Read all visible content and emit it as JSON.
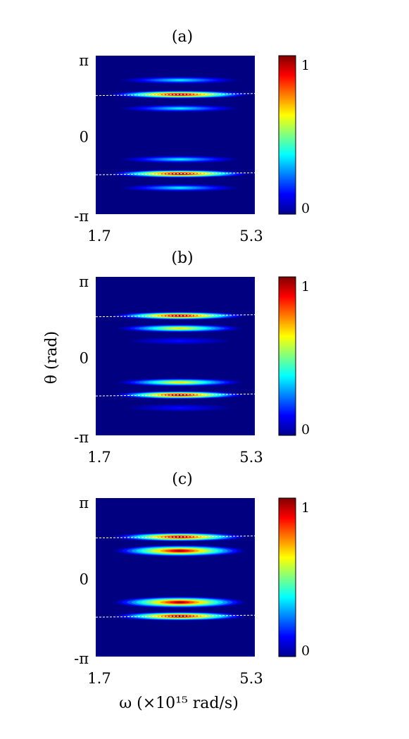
{
  "chart_data": [
    {
      "type": "heatmap",
      "title": "(a)",
      "xlabel": "",
      "ylabel": "",
      "x_tick_labels": [
        "1.7",
        "5.3"
      ],
      "y_tick_labels": [
        "π",
        "0",
        "-π"
      ],
      "xlim": [
        1.7,
        5.3
      ],
      "ylim": [
        -3.1416,
        3.1416
      ],
      "colorbar": {
        "ticks": [
          "0",
          "1"
        ],
        "range": [
          0,
          1
        ],
        "colormap": "jet"
      },
      "bands": [
        {
          "omega_center": 3.6,
          "omega_halfwidth": 0.85,
          "theta": 1.6,
          "theta_halfwidth": 0.09,
          "intensity": 1.0
        },
        {
          "omega_center": 3.6,
          "omega_halfwidth": 0.7,
          "theta": 2.17,
          "theta_halfwidth": 0.08,
          "intensity": 0.35
        },
        {
          "omega_center": 3.6,
          "omega_halfwidth": 0.7,
          "theta": 1.05,
          "theta_halfwidth": 0.08,
          "intensity": 0.35
        },
        {
          "omega_center": 3.6,
          "omega_halfwidth": 0.85,
          "theta": -1.54,
          "theta_halfwidth": 0.09,
          "intensity": 1.0
        },
        {
          "omega_center": 3.6,
          "omega_halfwidth": 0.7,
          "theta": -0.97,
          "theta_halfwidth": 0.08,
          "intensity": 0.35
        },
        {
          "omega_center": 3.6,
          "omega_halfwidth": 0.7,
          "theta": -2.1,
          "theta_halfwidth": 0.08,
          "intensity": 0.35
        }
      ],
      "dashed_lines": [
        {
          "x": [
            1.7,
            5.3
          ],
          "y": [
            1.56,
            1.64
          ]
        },
        {
          "x": [
            1.7,
            5.3
          ],
          "y": [
            -1.58,
            -1.5
          ]
        }
      ]
    },
    {
      "type": "heatmap",
      "title": "(b)",
      "xlabel": "",
      "ylabel": "θ (rad)",
      "x_tick_labels": [
        "1.7",
        "5.3"
      ],
      "y_tick_labels": [
        "π",
        "0",
        "-π"
      ],
      "xlim": [
        1.7,
        5.3
      ],
      "ylim": [
        -3.1416,
        3.1416
      ],
      "colorbar": {
        "ticks": [
          "0",
          "1"
        ],
        "range": [
          0,
          1
        ],
        "colormap": "jet"
      },
      "bands": [
        {
          "omega_center": 3.6,
          "omega_halfwidth": 0.8,
          "theta": 1.6,
          "theta_halfwidth": 0.09,
          "intensity": 1.0
        },
        {
          "omega_center": 3.6,
          "omega_halfwidth": 0.75,
          "theta": 1.1,
          "theta_halfwidth": 0.09,
          "intensity": 0.65
        },
        {
          "omega_center": 3.6,
          "omega_halfwidth": 0.6,
          "theta": 0.6,
          "theta_halfwidth": 0.08,
          "intensity": 0.12
        },
        {
          "omega_center": 3.6,
          "omega_halfwidth": 0.8,
          "theta": -1.54,
          "theta_halfwidth": 0.09,
          "intensity": 1.0
        },
        {
          "omega_center": 3.6,
          "omega_halfwidth": 0.75,
          "theta": -1.04,
          "theta_halfwidth": 0.09,
          "intensity": 0.65
        },
        {
          "omega_center": 3.6,
          "omega_halfwidth": 0.6,
          "theta": -2.05,
          "theta_halfwidth": 0.08,
          "intensity": 0.12
        }
      ],
      "dashed_lines": [
        {
          "x": [
            1.7,
            5.3
          ],
          "y": [
            1.56,
            1.64
          ]
        },
        {
          "x": [
            1.7,
            5.3
          ],
          "y": [
            -1.58,
            -1.5
          ]
        }
      ]
    },
    {
      "type": "heatmap",
      "title": "(c)",
      "xlabel": "ω (×10¹⁵ rad/s)",
      "ylabel": "",
      "x_tick_labels": [
        "1.7",
        "5.3"
      ],
      "y_tick_labels": [
        "π",
        "0",
        "-π"
      ],
      "xlim": [
        1.7,
        5.3
      ],
      "ylim": [
        -3.1416,
        3.1416
      ],
      "colorbar": {
        "ticks": [
          "0",
          "1"
        ],
        "range": [
          0,
          1
        ],
        "colormap": "jet"
      },
      "bands": [
        {
          "omega_center": 3.6,
          "omega_halfwidth": 0.8,
          "theta": 1.6,
          "theta_halfwidth": 0.1,
          "intensity": 1.0
        },
        {
          "omega_center": 3.6,
          "omega_halfwidth": 0.8,
          "theta": 1.05,
          "theta_halfwidth": 0.13,
          "intensity": 0.95
        },
        {
          "omega_center": 3.6,
          "omega_halfwidth": 0.8,
          "theta": -1.54,
          "theta_halfwidth": 0.1,
          "intensity": 1.0
        },
        {
          "omega_center": 3.6,
          "omega_halfwidth": 0.8,
          "theta": -0.99,
          "theta_halfwidth": 0.13,
          "intensity": 0.95
        }
      ],
      "dashed_lines": [
        {
          "x": [
            1.7,
            5.3
          ],
          "y": [
            1.56,
            1.64
          ]
        },
        {
          "x": [
            1.7,
            5.3
          ],
          "y": [
            -1.58,
            -1.5
          ]
        }
      ]
    }
  ]
}
